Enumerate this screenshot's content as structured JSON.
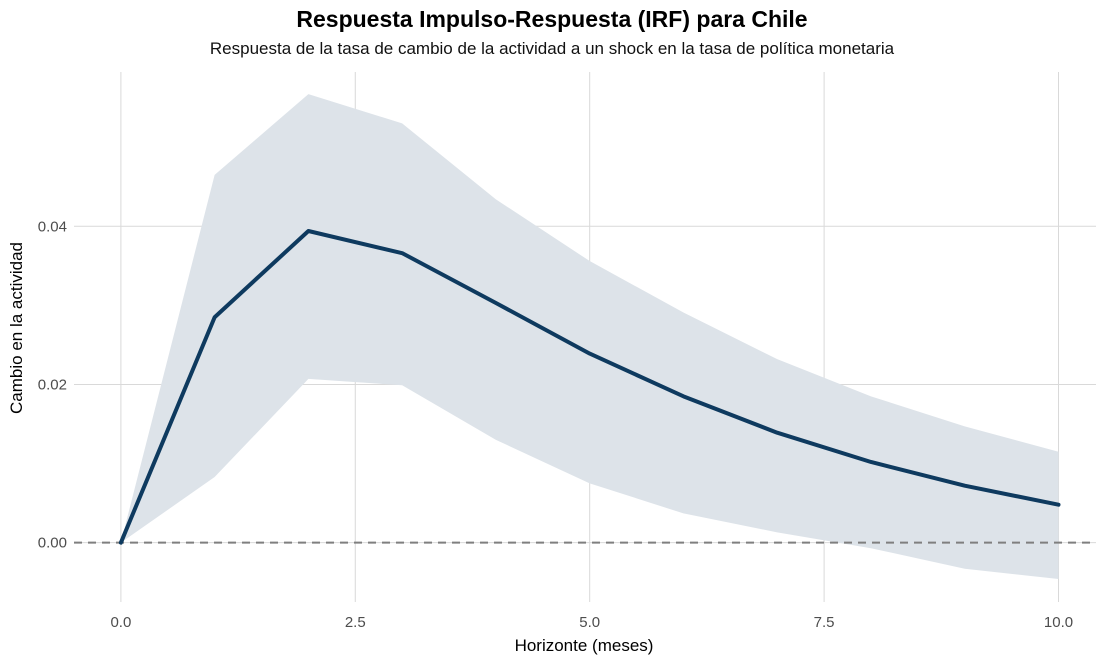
{
  "chart_data": {
    "type": "line",
    "title": "Respuesta Impulso-Respuesta (IRF) para Chile",
    "subtitle": "Respuesta de la tasa de cambio de la actividad a un shock en la tasa de política monetaria",
    "xlabel": "Horizonte (meses)",
    "ylabel": "Cambio en la actividad",
    "xlim": [
      -0.5,
      10.4
    ],
    "ylim": [
      -0.0075,
      0.0595
    ],
    "x_ticks": [
      0.0,
      2.5,
      5.0,
      7.5,
      10.0
    ],
    "x_tick_labels": [
      "0.0",
      "2.5",
      "5.0",
      "7.5",
      "10.0"
    ],
    "y_ticks": [
      0.0,
      0.02,
      0.04
    ],
    "y_tick_labels": [
      "0.00",
      "0.02",
      "0.04"
    ],
    "grid": true,
    "reference_line": {
      "y": 0,
      "style": "dashed"
    },
    "x": [
      0,
      1,
      2,
      3,
      4,
      5,
      6,
      7,
      8,
      9,
      10
    ],
    "series": [
      {
        "values": [
          0.0,
          0.0285,
          0.0394,
          0.0366,
          0.0303,
          0.0239,
          0.0185,
          0.0139,
          0.0102,
          0.0072,
          0.0048
        ],
        "lower": [
          0.0,
          0.0083,
          0.0207,
          0.0199,
          0.013,
          0.0075,
          0.0037,
          0.0013,
          -0.0007,
          -0.0033,
          -0.0046
        ],
        "upper": [
          0.0,
          0.0465,
          0.0567,
          0.053,
          0.0434,
          0.0356,
          0.0291,
          0.0232,
          0.0185,
          0.0147,
          0.0115
        ]
      }
    ],
    "colors": {
      "line": "#0e3a5f",
      "band": "#dde3e9",
      "grid": "#d9d9d9",
      "zero_line": "#7f7f7f"
    }
  }
}
